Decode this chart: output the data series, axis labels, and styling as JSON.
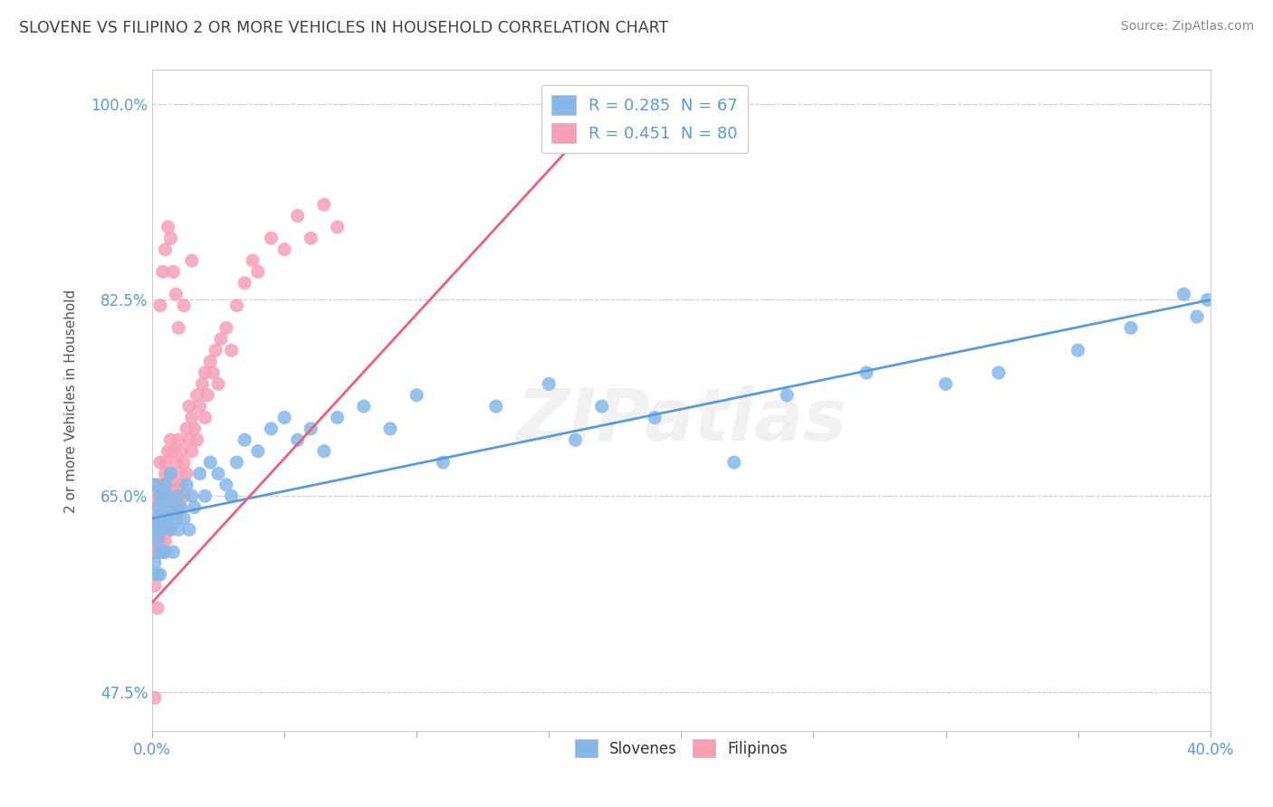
{
  "title": "SLOVENE VS FILIPINO 2 OR MORE VEHICLES IN HOUSEHOLD CORRELATION CHART",
  "source_text": "Source: ZipAtlas.com",
  "ylabel": "2 or more Vehicles in Household",
  "xlim": [
    0.0,
    0.4
  ],
  "ylim": [
    0.44,
    1.03
  ],
  "xtick_positions": [
    0.0,
    0.05,
    0.1,
    0.15,
    0.2,
    0.25,
    0.3,
    0.35,
    0.4
  ],
  "xtick_labels": [
    "0.0%",
    "",
    "",
    "",
    "",
    "",
    "",
    "",
    "40.0%"
  ],
  "ytick_positions": [
    0.475,
    0.65,
    0.825,
    1.0
  ],
  "ytick_labels": [
    "47.5%",
    "65.0%",
    "82.5%",
    "100.0%"
  ],
  "slovene_color": "#85b8e8",
  "filipino_color": "#f5a0b5",
  "slovene_line_color": "#5b9bd5",
  "filipino_line_color": "#e8607a",
  "R_slovene": 0.285,
  "N_slovene": 67,
  "R_filipino": 0.451,
  "N_filipino": 80,
  "background_color": "#ffffff",
  "grid_color": "#cccccc",
  "title_color": "#404040",
  "axis_label_color": "#5b9bd5",
  "slovene_line_x": [
    0.0,
    0.4
  ],
  "slovene_line_y": [
    0.63,
    0.825
  ],
  "filipino_line_x": [
    0.0,
    0.175
  ],
  "filipino_line_y": [
    0.555,
    1.005
  ],
  "watermark": "ZIPatlas",
  "slovene_scatter_x": [
    0.001,
    0.001,
    0.001,
    0.002,
    0.002,
    0.002,
    0.002,
    0.003,
    0.003,
    0.003,
    0.003,
    0.004,
    0.004,
    0.004,
    0.005,
    0.005,
    0.005,
    0.005,
    0.006,
    0.006,
    0.007,
    0.007,
    0.008,
    0.008,
    0.009,
    0.01,
    0.01,
    0.011,
    0.012,
    0.013,
    0.014,
    0.015,
    0.016,
    0.018,
    0.02,
    0.022,
    0.025,
    0.028,
    0.03,
    0.032,
    0.035,
    0.04,
    0.045,
    0.05,
    0.055,
    0.06,
    0.065,
    0.07,
    0.08,
    0.09,
    0.1,
    0.11,
    0.13,
    0.15,
    0.16,
    0.17,
    0.19,
    0.22,
    0.24,
    0.27,
    0.3,
    0.32,
    0.35,
    0.37,
    0.39,
    0.395,
    0.399
  ],
  "slovene_scatter_y": [
    0.66,
    0.62,
    0.59,
    0.64,
    0.61,
    0.58,
    0.63,
    0.65,
    0.6,
    0.63,
    0.58,
    0.62,
    0.65,
    0.6,
    0.63,
    0.66,
    0.6,
    0.64,
    0.63,
    0.65,
    0.67,
    0.62,
    0.64,
    0.6,
    0.63,
    0.65,
    0.62,
    0.64,
    0.63,
    0.66,
    0.62,
    0.65,
    0.64,
    0.67,
    0.65,
    0.68,
    0.67,
    0.66,
    0.65,
    0.68,
    0.7,
    0.69,
    0.71,
    0.72,
    0.7,
    0.71,
    0.69,
    0.72,
    0.73,
    0.71,
    0.74,
    0.68,
    0.73,
    0.75,
    0.7,
    0.73,
    0.72,
    0.68,
    0.74,
    0.76,
    0.75,
    0.76,
    0.78,
    0.8,
    0.83,
    0.81,
    0.825
  ],
  "filipino_scatter_x": [
    0.001,
    0.001,
    0.001,
    0.001,
    0.002,
    0.002,
    0.002,
    0.003,
    0.003,
    0.003,
    0.003,
    0.004,
    0.004,
    0.004,
    0.005,
    0.005,
    0.005,
    0.005,
    0.006,
    0.006,
    0.006,
    0.006,
    0.007,
    0.007,
    0.007,
    0.008,
    0.008,
    0.008,
    0.009,
    0.009,
    0.01,
    0.01,
    0.01,
    0.011,
    0.011,
    0.012,
    0.012,
    0.013,
    0.013,
    0.014,
    0.014,
    0.015,
    0.015,
    0.016,
    0.017,
    0.017,
    0.018,
    0.019,
    0.02,
    0.02,
    0.021,
    0.022,
    0.023,
    0.024,
    0.025,
    0.026,
    0.028,
    0.03,
    0.032,
    0.035,
    0.038,
    0.04,
    0.045,
    0.05,
    0.055,
    0.06,
    0.065,
    0.07,
    0.003,
    0.004,
    0.005,
    0.006,
    0.007,
    0.008,
    0.009,
    0.01,
    0.012,
    0.015,
    0.002,
    0.001
  ],
  "filipino_scatter_y": [
    0.62,
    0.65,
    0.6,
    0.57,
    0.63,
    0.66,
    0.6,
    0.64,
    0.68,
    0.61,
    0.65,
    0.62,
    0.66,
    0.63,
    0.67,
    0.64,
    0.61,
    0.68,
    0.65,
    0.62,
    0.69,
    0.66,
    0.64,
    0.67,
    0.7,
    0.63,
    0.66,
    0.69,
    0.65,
    0.68,
    0.64,
    0.67,
    0.7,
    0.66,
    0.69,
    0.65,
    0.68,
    0.71,
    0.67,
    0.7,
    0.73,
    0.69,
    0.72,
    0.71,
    0.74,
    0.7,
    0.73,
    0.75,
    0.72,
    0.76,
    0.74,
    0.77,
    0.76,
    0.78,
    0.75,
    0.79,
    0.8,
    0.78,
    0.82,
    0.84,
    0.86,
    0.85,
    0.88,
    0.87,
    0.9,
    0.88,
    0.91,
    0.89,
    0.82,
    0.85,
    0.87,
    0.89,
    0.88,
    0.85,
    0.83,
    0.8,
    0.82,
    0.86,
    0.55,
    0.47
  ]
}
